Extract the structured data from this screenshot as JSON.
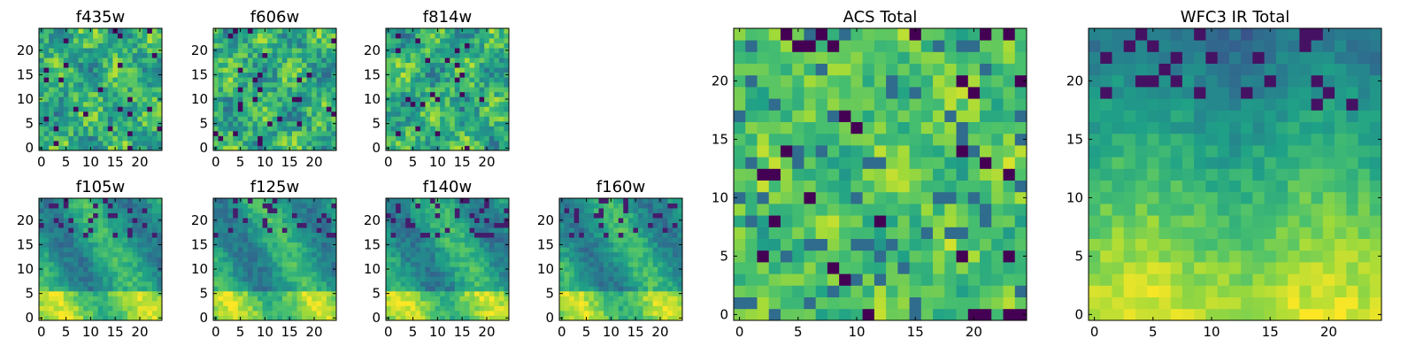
{
  "chart_data": [
    {
      "type": "heatmap",
      "title": "f435w",
      "xticks": [
        "0",
        "5",
        "10",
        "15",
        "20"
      ],
      "yticks": [
        "0",
        "5",
        "10",
        "15",
        "20"
      ],
      "xlim": [
        0,
        25
      ],
      "ylim": [
        0,
        25
      ],
      "grid": [
        25,
        25
      ],
      "seed": 11,
      "pattern": "noisy",
      "values_note": "25x25 pixel image; per-pixel values not legible"
    },
    {
      "type": "heatmap",
      "title": "f606w",
      "xticks": [
        "0",
        "5",
        "10",
        "15",
        "20"
      ],
      "yticks": [
        "0",
        "5",
        "10",
        "15",
        "20"
      ],
      "xlim": [
        0,
        25
      ],
      "ylim": [
        0,
        25
      ],
      "grid": [
        25,
        25
      ],
      "seed": 23,
      "pattern": "noisy",
      "values_note": "25x25 pixel image; per-pixel values not legible"
    },
    {
      "type": "heatmap",
      "title": "f814w",
      "xticks": [
        "0",
        "5",
        "10",
        "15",
        "20"
      ],
      "yticks": [
        "0",
        "5",
        "10",
        "15",
        "20"
      ],
      "xlim": [
        0,
        25
      ],
      "ylim": [
        0,
        25
      ],
      "grid": [
        25,
        25
      ],
      "seed": 37,
      "pattern": "noisy",
      "values_note": "25x25 pixel image; per-pixel values not legible"
    },
    {
      "type": "heatmap",
      "title": "f105w",
      "xticks": [
        "0",
        "5",
        "10",
        "15",
        "20"
      ],
      "yticks": [
        "0",
        "5",
        "10",
        "15",
        "20"
      ],
      "xlim": [
        0,
        25
      ],
      "ylim": [
        0,
        25
      ],
      "grid": [
        25,
        25
      ],
      "seed": 41,
      "pattern": "smooth",
      "values_note": "25x25 pixel image; per-pixel values not legible"
    },
    {
      "type": "heatmap",
      "title": "f125w",
      "xticks": [
        "0",
        "5",
        "10",
        "15",
        "20"
      ],
      "yticks": [
        "0",
        "5",
        "10",
        "15",
        "20"
      ],
      "xlim": [
        0,
        25
      ],
      "ylim": [
        0,
        25
      ],
      "grid": [
        25,
        25
      ],
      "seed": 53,
      "pattern": "smooth",
      "values_note": "25x25 pixel image; per-pixel values not legible"
    },
    {
      "type": "heatmap",
      "title": "f140w",
      "xticks": [
        "0",
        "5",
        "10",
        "15",
        "20"
      ],
      "yticks": [
        "0",
        "5",
        "10",
        "15",
        "20"
      ],
      "xlim": [
        0,
        25
      ],
      "ylim": [
        0,
        25
      ],
      "grid": [
        25,
        25
      ],
      "seed": 67,
      "pattern": "smooth",
      "values_note": "25x25 pixel image; per-pixel values not legible"
    },
    {
      "type": "heatmap",
      "title": "f160w",
      "xticks": [
        "0",
        "5",
        "10",
        "15",
        "20"
      ],
      "yticks": [
        "0",
        "5",
        "10",
        "15",
        "20"
      ],
      "xlim": [
        0,
        25
      ],
      "ylim": [
        0,
        25
      ],
      "grid": [
        25,
        25
      ],
      "seed": 79,
      "pattern": "smooth",
      "values_note": "25x25 pixel image; per-pixel values not legible"
    },
    {
      "type": "heatmap",
      "title": "ACS Total",
      "xticks": [
        "0",
        "5",
        "10",
        "15",
        "20"
      ],
      "yticks": [
        "0",
        "5",
        "10",
        "15",
        "20"
      ],
      "xlim": [
        0,
        25
      ],
      "ylim": [
        0,
        25
      ],
      "grid": [
        25,
        25
      ],
      "seed": 83,
      "pattern": "acs",
      "values_note": "25x25 pixel image; per-pixel values not legible"
    },
    {
      "type": "heatmap",
      "title": "WFC3 IR Total",
      "xticks": [
        "0",
        "5",
        "10",
        "15",
        "20"
      ],
      "yticks": [
        "0",
        "5",
        "10",
        "15",
        "20"
      ],
      "xlim": [
        0,
        25
      ],
      "ylim": [
        0,
        25
      ],
      "grid": [
        25,
        25
      ],
      "seed": 97,
      "pattern": "wfc3",
      "values_note": "25x25 pixel image; per-pixel values not legible"
    }
  ],
  "colormap": [
    "#440154",
    "#46327e",
    "#365c8d",
    "#277f8e",
    "#1fa187",
    "#4ac16d",
    "#a0da39",
    "#fde725"
  ]
}
